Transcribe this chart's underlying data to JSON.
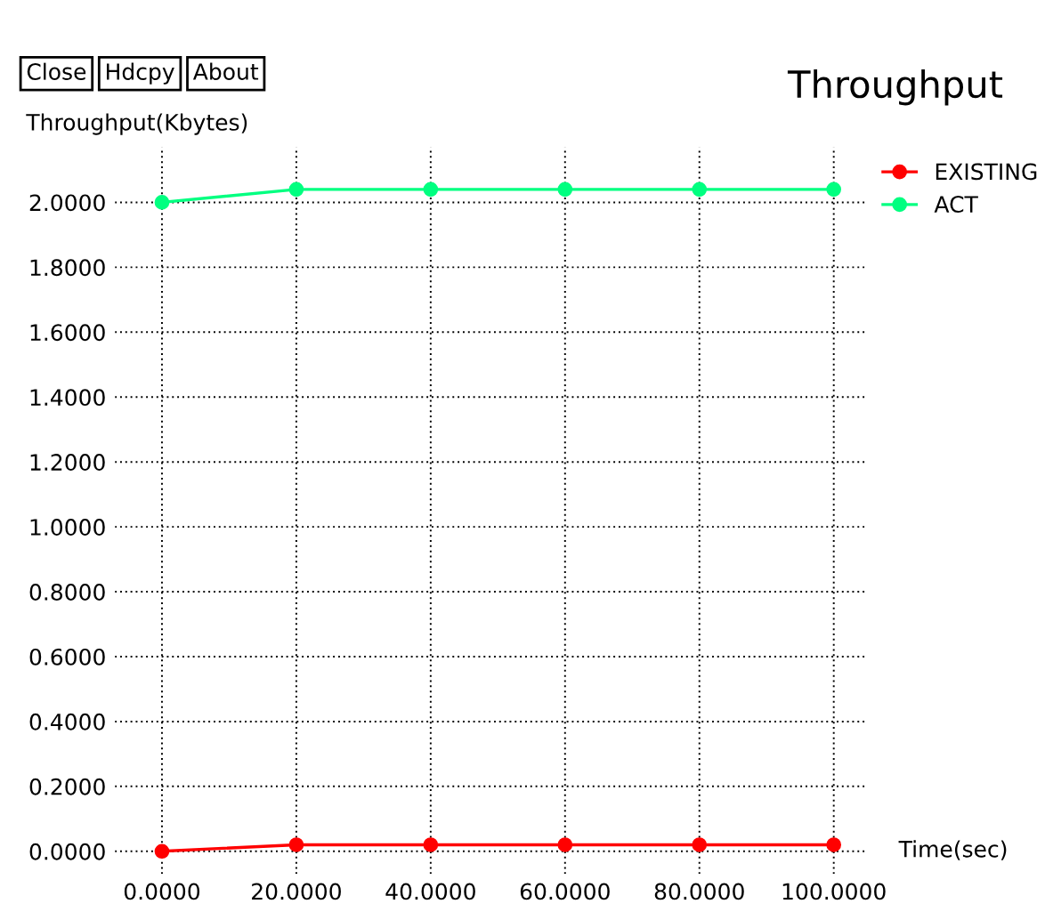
{
  "chart_data": {
    "type": "line",
    "title": "Throughput",
    "xlabel": "Time(sec)",
    "ylabel": "Throughput(Kbytes)",
    "annotations": [
      "Close",
      "Hdcpy",
      "About"
    ],
    "x": [
      0,
      20,
      40,
      60,
      80,
      100
    ],
    "series": [
      {
        "name": "EXISTING",
        "color": "#ff0000",
        "values": [
          0.0,
          0.02,
          0.02,
          0.02,
          0.02,
          0.02
        ]
      },
      {
        "name": "ACT",
        "color": "#00ff80",
        "values": [
          2.0,
          2.04,
          2.04,
          2.04,
          2.04,
          2.04
        ]
      }
    ],
    "xlim": [
      -7,
      105
    ],
    "ylim": [
      -0.07,
      2.17
    ],
    "xticks": [
      {
        "value": 0,
        "label": "0.0000"
      },
      {
        "value": 20,
        "label": "20.0000"
      },
      {
        "value": 40,
        "label": "40.0000"
      },
      {
        "value": 60,
        "label": "60.0000"
      },
      {
        "value": 80,
        "label": "80.0000"
      },
      {
        "value": 100,
        "label": "100.0000"
      }
    ],
    "yticks": [
      {
        "value": 0,
        "label": "0.0000"
      },
      {
        "value": 0.2,
        "label": "0.2000"
      },
      {
        "value": 0.4,
        "label": "0.4000"
      },
      {
        "value": 0.6,
        "label": "0.6000"
      },
      {
        "value": 0.8,
        "label": "0.8000"
      },
      {
        "value": 1.0,
        "label": "1.0000"
      },
      {
        "value": 1.2,
        "label": "1.2000"
      },
      {
        "value": 1.4,
        "label": "1.4000"
      },
      {
        "value": 1.6,
        "label": "1.6000"
      },
      {
        "value": 1.8,
        "label": "1.8000"
      },
      {
        "value": 2.0,
        "label": "2.0000"
      }
    ],
    "grid": true,
    "legend": "top right",
    "marker": "circle",
    "line_style": "solid"
  }
}
